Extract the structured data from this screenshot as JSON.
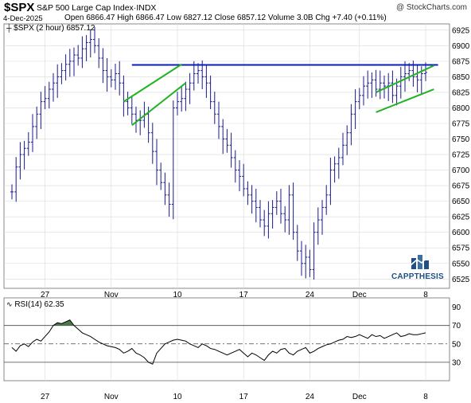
{
  "header": {
    "symbol": "$SPX",
    "name": "S&P 500 Large Cap Index",
    "exchange": "INDX",
    "watermark": "@ StockCharts.com",
    "date": "4-Dec-2025",
    "open_label": "Open",
    "open": "6866.47",
    "high_label": "High",
    "high": "6866.47",
    "low_label": "Low",
    "low": "6827.12",
    "close_label": "Close",
    "close": "6857.12",
    "volume_label": "Volume",
    "volume": "3.0B",
    "chg_label": "Chg",
    "chg": "+7.40 (+0.11%)"
  },
  "price_panel": {
    "legend": "$SPX (2 hour) 6857.12"
  },
  "rsi_panel": {
    "legend": "RSI(14) 62.35"
  },
  "logo": {
    "text": "CAPPTHESIS"
  },
  "colors": {
    "bars": "#1a1a8c",
    "trendline": "#0a1fb8",
    "channel": "#22b322",
    "rsi_line": "#000000",
    "rsi_fill": "#4a7a4a",
    "grid": "#d9d9d9",
    "logo": "#1f4f85"
  },
  "chart_data": [
    {
      "type": "ohlc",
      "title": "$SPX (2 hour)",
      "ylim": [
        6510,
        6935
      ],
      "yticks": [
        6525,
        6550,
        6575,
        6600,
        6625,
        6650,
        6675,
        6700,
        6725,
        6750,
        6775,
        6800,
        6825,
        6850,
        6875,
        6900,
        6925
      ],
      "xtick_labels": [
        {
          "label": "27",
          "index": 8
        },
        {
          "label": "Nov",
          "index": 24
        },
        {
          "label": "10",
          "index": 40
        },
        {
          "label": "17",
          "index": 56
        },
        {
          "label": "24",
          "index": 72
        },
        {
          "label": "Dec",
          "index": 84
        },
        {
          "label": "8",
          "index": 100
        }
      ],
      "bars_close": [
        6665,
        6705,
        6725,
        6735,
        6745,
        6770,
        6790,
        6810,
        6815,
        6830,
        6840,
        6850,
        6860,
        6870,
        6875,
        6885,
        6880,
        6895,
        6905,
        6910,
        6900,
        6880,
        6860,
        6850,
        6845,
        6855,
        6840,
        6810,
        6800,
        6790,
        6780,
        6780,
        6790,
        6760,
        6730,
        6700,
        6680,
        6660,
        6645,
        6800,
        6810,
        6815,
        6830,
        6840,
        6855,
        6860,
        6850,
        6840,
        6810,
        6790,
        6770,
        6750,
        6740,
        6720,
        6700,
        6690,
        6670,
        6660,
        6650,
        6640,
        6620,
        6610,
        6630,
        6640,
        6650,
        6630,
        6620,
        6660,
        6600,
        6570,
        6550,
        6560,
        6540,
        6600,
        6620,
        6640,
        6660,
        6700,
        6710,
        6720,
        6740,
        6760,
        6790,
        6810,
        6820,
        6835,
        6840,
        6845,
        6830,
        6840,
        6835,
        6840,
        6820,
        6835,
        6850,
        6855,
        6860,
        6850,
        6845,
        6855,
        6857
      ],
      "annotations": [
        {
          "type": "horizontal_line",
          "value": 6869,
          "from_index": 29,
          "to_index": 103
        },
        {
          "type": "channel_line",
          "from": [
            27,
            6810
          ],
          "to": [
            41,
            6870
          ]
        },
        {
          "type": "channel_line",
          "from": [
            29,
            6772
          ],
          "to": [
            42,
            6840
          ]
        },
        {
          "type": "channel_line",
          "from": [
            88,
            6825
          ],
          "to": [
            102,
            6868
          ]
        },
        {
          "type": "channel_line",
          "from": [
            88,
            6793
          ],
          "to": [
            102,
            6830
          ]
        }
      ]
    },
    {
      "type": "line",
      "title": "RSI(14)",
      "ylim": [
        10,
        100
      ],
      "yticks": [
        30,
        50,
        70,
        90
      ],
      "reference_lines": [
        30,
        50,
        70
      ],
      "values": [
        46,
        42,
        48,
        50,
        47,
        52,
        55,
        53,
        58,
        63,
        70,
        73,
        72,
        74,
        76,
        70,
        66,
        62,
        60,
        58,
        55,
        52,
        50,
        48,
        47,
        46,
        44,
        40,
        42,
        45,
        40,
        38,
        35,
        30,
        28,
        40,
        45,
        50,
        52,
        54,
        55,
        54,
        53,
        50,
        48,
        46,
        50,
        48,
        45,
        44,
        42,
        40,
        38,
        40,
        42,
        44,
        40,
        36,
        40,
        38,
        35,
        32,
        38,
        42,
        40,
        44,
        45,
        40,
        38,
        42,
        44,
        46,
        40,
        42,
        45,
        47,
        49,
        50,
        52,
        54,
        55,
        58,
        57,
        58,
        60,
        58,
        56,
        60,
        58,
        59,
        56,
        58,
        60,
        62,
        58,
        59,
        61,
        60,
        60,
        61,
        62
      ]
    }
  ]
}
